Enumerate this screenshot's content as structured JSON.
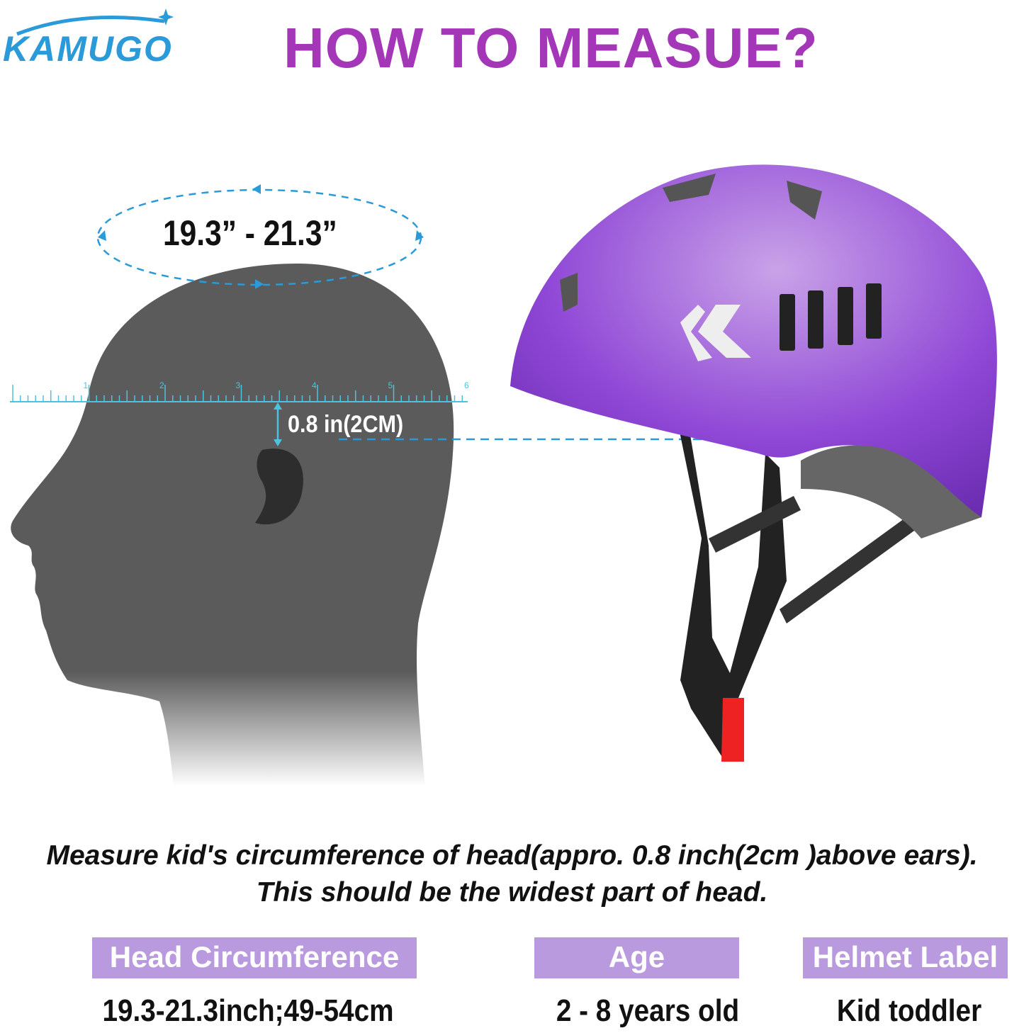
{
  "brand": {
    "logo_text": "KAMUGO",
    "color": "#2a9ad8"
  },
  "title": "HOW TO MEASUE?",
  "diagram": {
    "circumference_label": "19.3” - 21.3”",
    "offset_label": "0.8 in(2CM)",
    "ruler_numbers": [
      "1",
      "2",
      "3",
      "4",
      "5",
      "6"
    ],
    "helmet_color": "#8a3fd0",
    "accent_color": "#2a9ad8"
  },
  "instructions": {
    "line1": "Measure kid's circumference of head(appro. 0.8 inch(2cm )above ears).",
    "line2": "This should be the widest part of head."
  },
  "size_table": {
    "header_color": "#b99ade",
    "columns": [
      {
        "header": "Head Circumference",
        "value": "19.3-21.3inch;49-54cm"
      },
      {
        "header": "Age",
        "value": "2 - 8 years old"
      },
      {
        "header": "Helmet Label",
        "value": "Kid toddler"
      }
    ]
  }
}
